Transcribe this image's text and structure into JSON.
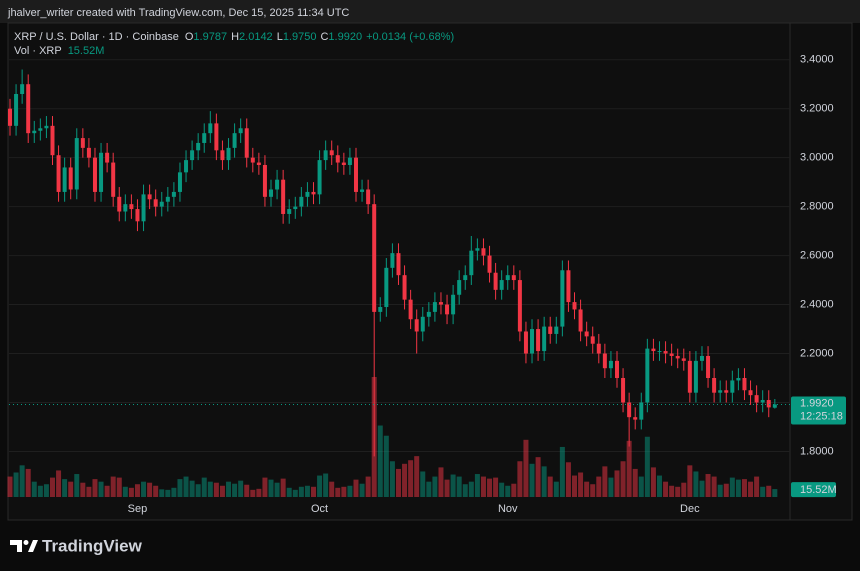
{
  "header": {
    "text": "jhalver_writer created with TradingView.com, Dec 15, 2025 11:34 UTC"
  },
  "footer": {
    "brand": "TradingView"
  },
  "chart_data": {
    "type": "candlestick",
    "title": "XRP / U.S. Dollar · 1D · Coinbase",
    "ohlc_legend": [
      {
        "label": "O",
        "value": "1.9787"
      },
      {
        "label": "H",
        "value": "2.0142"
      },
      {
        "label": "L",
        "value": "1.9750"
      },
      {
        "label": "C",
        "value": "1.9920"
      }
    ],
    "change_label": "+0.0134 (+0.68%)",
    "volume_title": "Vol · XRP",
    "volume_label": "15.52M",
    "last_price_label": "1.9920",
    "countdown": "12:25:18",
    "colors": {
      "up": "#089981",
      "down": "#f23645"
    },
    "ylim": [
      1.52,
      3.55
    ],
    "yticks": [
      {
        "value": 1.8,
        "label": "1.8000"
      },
      {
        "value": 2.0,
        "label": "2.0000"
      },
      {
        "value": 2.2,
        "label": "2.2000"
      },
      {
        "value": 2.4,
        "label": "2.4000"
      },
      {
        "value": 2.6,
        "label": "2.6000"
      },
      {
        "value": 2.8,
        "label": "2.8000"
      },
      {
        "value": 3.0,
        "label": "3.0000"
      },
      {
        "value": 3.2,
        "label": "3.2000"
      },
      {
        "value": 3.4,
        "label": "3.4000"
      }
    ],
    "grid": true,
    "x": [
      null,
      null,
      null,
      null,
      null,
      null,
      null,
      null,
      null,
      null,
      null,
      null,
      null,
      null,
      null,
      null,
      null,
      null,
      null,
      null,
      null,
      "Sep",
      null,
      null,
      null,
      null,
      null,
      null,
      null,
      null,
      null,
      null,
      null,
      null,
      null,
      null,
      null,
      null,
      null,
      null,
      null,
      null,
      null,
      null,
      null,
      null,
      null,
      null,
      null,
      null,
      null,
      "Oct",
      null,
      null,
      null,
      null,
      null,
      null,
      null,
      null,
      null,
      null,
      null,
      null,
      null,
      null,
      null,
      null,
      null,
      null,
      null,
      null,
      null,
      null,
      null,
      null,
      null,
      null,
      null,
      null,
      null,
      null,
      "Nov",
      null,
      null,
      null,
      null,
      null,
      null,
      null,
      null,
      null,
      null,
      null,
      null,
      null,
      null,
      null,
      null,
      null,
      null,
      null,
      null,
      null,
      null,
      null,
      null,
      null,
      null,
      null,
      null,
      null,
      "Dec",
      null,
      null,
      null,
      null,
      null,
      null,
      null,
      null,
      null,
      null,
      null,
      null,
      null,
      null
    ],
    "open": [
      3.2,
      3.13,
      3.26,
      3.3,
      3.1,
      3.11,
      3.12,
      3.13,
      3.01,
      2.86,
      2.96,
      2.87,
      3.08,
      3.04,
      3.0,
      2.86,
      3.02,
      2.98,
      2.84,
      2.78,
      2.81,
      2.79,
      2.74,
      2.85,
      2.83,
      2.8,
      2.82,
      2.84,
      2.86,
      2.94,
      2.99,
      3.03,
      3.06,
      3.1,
      3.14,
      3.03,
      2.99,
      3.04,
      3.1,
      3.12,
      3.0,
      2.98,
      2.97,
      2.84,
      2.87,
      2.91,
      2.77,
      2.79,
      2.8,
      2.84,
      2.86,
      2.85,
      2.99,
      3.03,
      3.01,
      2.98,
      2.97,
      3.0,
      2.86,
      2.87,
      2.81,
      2.37,
      2.39,
      2.55,
      2.61,
      2.52,
      2.42,
      2.34,
      2.29,
      2.35,
      2.37,
      2.41,
      2.4,
      2.36,
      2.44,
      2.5,
      2.52,
      2.62,
      2.63,
      2.6,
      2.53,
      2.46,
      2.5,
      2.52,
      2.5,
      2.29,
      2.2,
      2.3,
      2.21,
      2.31,
      2.28,
      2.31,
      2.54,
      2.41,
      2.38,
      2.29,
      2.27,
      2.24,
      2.2,
      2.14,
      2.17,
      2.1,
      2.0,
      1.94,
      1.93,
      2.0,
      2.22,
      2.21,
      2.21,
      2.2,
      2.19,
      2.18,
      2.17,
      2.04,
      2.17,
      2.19,
      2.1,
      2.04,
      2.05,
      2.04,
      2.09,
      2.1,
      2.05,
      2.03,
      2.0,
      2.01,
      1.9787
    ],
    "high": [
      3.24,
      3.3,
      3.36,
      3.34,
      3.15,
      3.16,
      3.17,
      3.17,
      3.05,
      3.0,
      3.0,
      3.12,
      3.12,
      3.08,
      3.04,
      3.06,
      3.06,
      3.02,
      2.88,
      2.85,
      2.85,
      2.83,
      2.89,
      2.89,
      2.87,
      2.86,
      2.88,
      2.9,
      2.98,
      3.03,
      3.07,
      3.1,
      3.14,
      3.19,
      3.18,
      3.07,
      3.08,
      3.14,
      3.16,
      3.16,
      3.04,
      3.02,
      3.01,
      2.91,
      2.95,
      2.95,
      2.83,
      2.84,
      2.88,
      2.9,
      2.9,
      3.03,
      3.07,
      3.07,
      3.05,
      3.02,
      3.04,
      3.04,
      2.91,
      2.91,
      2.85,
      2.43,
      2.59,
      2.65,
      2.65,
      2.56,
      2.46,
      2.38,
      2.39,
      2.41,
      2.45,
      2.45,
      2.44,
      2.48,
      2.54,
      2.56,
      2.68,
      2.67,
      2.67,
      2.64,
      2.57,
      2.54,
      2.56,
      2.56,
      2.54,
      2.33,
      2.34,
      2.34,
      2.35,
      2.35,
      2.35,
      2.58,
      2.58,
      2.45,
      2.42,
      2.33,
      2.31,
      2.28,
      2.24,
      2.21,
      2.21,
      2.14,
      2.04,
      1.98,
      2.04,
      2.26,
      2.26,
      2.25,
      2.25,
      2.24,
      2.22,
      2.22,
      2.21,
      2.21,
      2.23,
      2.23,
      2.14,
      2.09,
      2.09,
      2.13,
      2.14,
      2.14,
      2.09,
      2.07,
      2.05,
      2.05,
      2.0142
    ],
    "low": [
      3.09,
      3.09,
      3.22,
      3.06,
      3.06,
      3.07,
      3.08,
      2.97,
      2.82,
      2.82,
      2.83,
      2.83,
      3.0,
      2.96,
      2.82,
      2.82,
      2.94,
      2.8,
      2.74,
      2.74,
      2.75,
      2.7,
      2.7,
      2.79,
      2.76,
      2.76,
      2.78,
      2.8,
      2.82,
      2.9,
      2.95,
      2.99,
      3.02,
      3.06,
      2.99,
      2.95,
      2.95,
      3.0,
      3.06,
      2.96,
      2.94,
      2.93,
      2.8,
      2.8,
      2.83,
      2.73,
      2.73,
      2.75,
      2.76,
      2.8,
      2.81,
      2.81,
      2.95,
      2.97,
      2.94,
      2.93,
      2.93,
      2.82,
      2.82,
      2.77,
      1.78,
      2.33,
      2.35,
      2.51,
      2.48,
      2.38,
      2.3,
      2.2,
      2.25,
      2.31,
      2.33,
      2.36,
      2.32,
      2.32,
      2.4,
      2.46,
      2.48,
      2.58,
      2.56,
      2.49,
      2.42,
      2.42,
      2.46,
      2.46,
      2.25,
      2.16,
      2.16,
      2.17,
      2.17,
      2.24,
      2.24,
      2.27,
      2.37,
      2.34,
      2.25,
      2.23,
      2.2,
      2.16,
      2.1,
      2.1,
      2.06,
      1.96,
      1.82,
      1.89,
      1.89,
      1.96,
      2.17,
      2.17,
      2.16,
      2.15,
      2.14,
      2.13,
      2.0,
      2.0,
      2.13,
      2.06,
      2.0,
      2.0,
      2.0,
      2.0,
      2.05,
      2.01,
      1.99,
      1.96,
      1.96,
      1.94,
      1.975
    ],
    "close": [
      3.13,
      3.26,
      3.3,
      3.1,
      3.11,
      3.12,
      3.13,
      3.01,
      2.86,
      2.96,
      2.87,
      3.08,
      3.04,
      3.0,
      2.86,
      3.02,
      2.98,
      2.84,
      2.78,
      2.81,
      2.79,
      2.74,
      2.85,
      2.83,
      2.8,
      2.82,
      2.84,
      2.86,
      2.94,
      2.99,
      3.03,
      3.06,
      3.1,
      3.14,
      3.03,
      2.99,
      3.04,
      3.1,
      3.12,
      3.0,
      2.98,
      2.97,
      2.84,
      2.87,
      2.91,
      2.77,
      2.79,
      2.8,
      2.84,
      2.86,
      2.85,
      2.99,
      3.03,
      3.01,
      2.98,
      2.97,
      3.0,
      2.86,
      2.87,
      2.81,
      2.37,
      2.39,
      2.55,
      2.61,
      2.52,
      2.42,
      2.34,
      2.29,
      2.35,
      2.37,
      2.41,
      2.4,
      2.36,
      2.44,
      2.5,
      2.52,
      2.62,
      2.63,
      2.6,
      2.53,
      2.46,
      2.5,
      2.52,
      2.5,
      2.29,
      2.2,
      2.3,
      2.21,
      2.31,
      2.28,
      2.31,
      2.54,
      2.41,
      2.38,
      2.29,
      2.27,
      2.24,
      2.2,
      2.14,
      2.17,
      2.1,
      2.0,
      1.94,
      1.93,
      2.0,
      2.22,
      2.21,
      2.21,
      2.2,
      2.19,
      2.18,
      2.17,
      2.04,
      2.17,
      2.19,
      2.1,
      2.04,
      2.05,
      2.04,
      2.09,
      2.1,
      2.05,
      2.03,
      2.0,
      2.01,
      1.98,
      1.992
    ],
    "volume": [
      40,
      48,
      62,
      55,
      30,
      22,
      25,
      38,
      52,
      35,
      30,
      45,
      28,
      20,
      35,
      30,
      22,
      40,
      38,
      20,
      18,
      25,
      30,
      28,
      22,
      15,
      14,
      18,
      35,
      40,
      32,
      25,
      38,
      30,
      28,
      22,
      30,
      26,
      32,
      24,
      14,
      16,
      38,
      34,
      28,
      36,
      18,
      14,
      20,
      22,
      20,
      42,
      46,
      30,
      18,
      20,
      22,
      34,
      26,
      40,
      235,
      140,
      120,
      70,
      55,
      65,
      72,
      80,
      50,
      30,
      40,
      58,
      34,
      44,
      40,
      25,
      30,
      45,
      40,
      36,
      38,
      28,
      22,
      26,
      70,
      112,
      65,
      78,
      60,
      40,
      30,
      98,
      68,
      42,
      48,
      30,
      25,
      40,
      60,
      38,
      52,
      70,
      110,
      55,
      40,
      118,
      58,
      42,
      30,
      22,
      20,
      28,
      62,
      50,
      32,
      45,
      40,
      24,
      26,
      38,
      34,
      35,
      30,
      40,
      20,
      22,
      15.52
    ]
  }
}
